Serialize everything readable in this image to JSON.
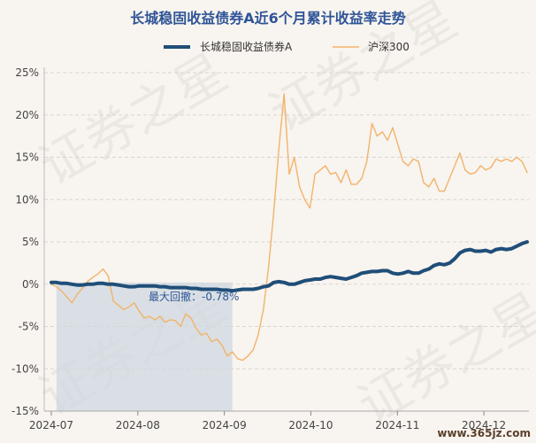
{
  "chart_data": {
    "type": "line",
    "title": "长城稳固收益债券A近6个月累计收益率走势",
    "series": [
      {
        "name": "长城稳固收益债券A",
        "color": "#1f4e79",
        "values": [
          0.2,
          0.2,
          0.1,
          0.1,
          0.0,
          -0.1,
          -0.1,
          0.0,
          0.0,
          0.1,
          0.1,
          0.0,
          0.0,
          -0.1,
          -0.2,
          -0.3,
          -0.3,
          -0.2,
          -0.2,
          -0.2,
          -0.2,
          -0.3,
          -0.3,
          -0.4,
          -0.4,
          -0.4,
          -0.4,
          -0.5,
          -0.5,
          -0.6,
          -0.6,
          -0.6,
          -0.6,
          -0.7,
          -0.7,
          -0.78,
          -0.7,
          -0.6,
          -0.6,
          -0.6,
          -0.5,
          -0.3,
          -0.2,
          0.2,
          0.3,
          0.2,
          0.0,
          0.0,
          0.2,
          0.4,
          0.5,
          0.6,
          0.6,
          0.8,
          0.9,
          0.8,
          0.7,
          0.6,
          0.8,
          1.0,
          1.3,
          1.4,
          1.5,
          1.5,
          1.6,
          1.6,
          1.3,
          1.2,
          1.3,
          1.5,
          1.3,
          1.3,
          1.6,
          1.8,
          2.2,
          2.4,
          2.3,
          2.5,
          3.0,
          3.7,
          4.0,
          4.1,
          3.9,
          3.9,
          4.0,
          3.8,
          4.1,
          4.2,
          4.1,
          4.2,
          4.5,
          4.8,
          5.0
        ]
      },
      {
        "name": "沪深300",
        "color": "#f2b36b",
        "values": [
          0.0,
          -0.3,
          -0.8,
          -1.5,
          -2.2,
          -1.2,
          -0.5,
          0.3,
          0.8,
          1.2,
          1.8,
          1.0,
          -2.0,
          -2.5,
          -3.0,
          -2.7,
          -2.2,
          -3.2,
          -4.0,
          -3.8,
          -4.2,
          -3.8,
          -4.5,
          -4.2,
          -4.3,
          -5.0,
          -3.5,
          -4.0,
          -5.2,
          -6.0,
          -5.8,
          -6.8,
          -6.5,
          -7.2,
          -8.5,
          -8.0,
          -8.8,
          -9.0,
          -8.5,
          -7.8,
          -6.0,
          -3.0,
          2.0,
          8.5,
          16.0,
          22.5,
          13.0,
          15.0,
          11.5,
          10.0,
          9.0,
          13.0,
          13.5,
          14.0,
          13.0,
          13.2,
          12.0,
          13.5,
          11.8,
          11.8,
          12.5,
          14.5,
          19.0,
          17.5,
          18.0,
          17.0,
          18.5,
          16.5,
          14.5,
          14.0,
          14.8,
          14.5,
          12.0,
          11.5,
          12.5,
          11.0,
          11.0,
          12.5,
          14.0,
          15.5,
          13.5,
          13.0,
          13.2,
          14.0,
          13.5,
          13.8,
          14.8,
          14.5,
          14.8,
          14.5,
          15.0,
          14.5,
          13.2
        ]
      }
    ],
    "x_ticks": [
      "2024-07",
      "2024-08",
      "2024-09",
      "2024-10",
      "2024-11",
      "2024-12"
    ],
    "y_ticks": [
      "25%",
      "20%",
      "15%",
      "10%",
      "5%",
      "0%",
      "-5%",
      "-10%",
      "-15%"
    ],
    "ylim": [
      -15,
      25
    ],
    "grid": true,
    "legend_position": "top-center",
    "drawdown": {
      "label": "最大回撤：-0.78%",
      "fill": "#cfd8e0"
    }
  },
  "watermark": {
    "text": "证券之星",
    "site": "www.365jz.com"
  }
}
